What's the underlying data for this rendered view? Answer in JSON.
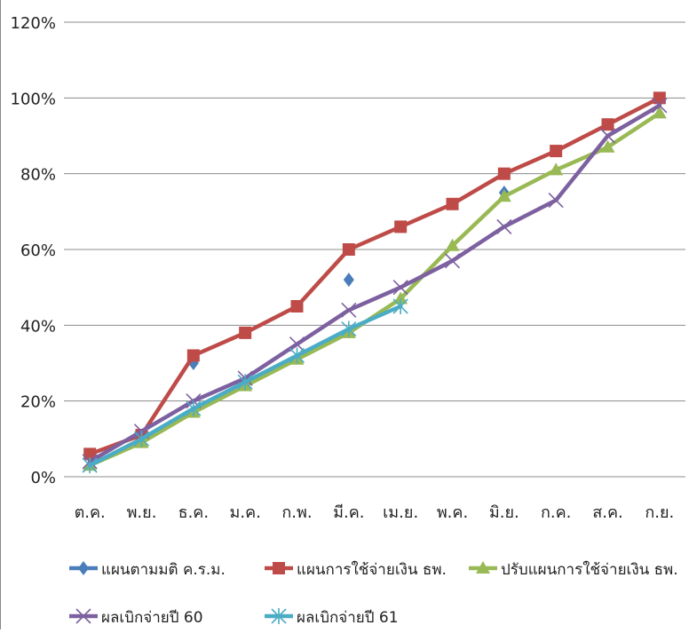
{
  "chart_data": {
    "type": "line",
    "categories": [
      "ต.ค.",
      "พ.ย.",
      "ธ.ค.",
      "ม.ค.",
      "ก.พ.",
      "มี.ค.",
      "เม.ย.",
      "พ.ค.",
      "มิ.ย.",
      "ก.ค.",
      "ส.ค.",
      "ก.ย."
    ],
    "y_ticks": [
      "0%",
      "20%",
      "40%",
      "60%",
      "80%",
      "100%",
      "120%"
    ],
    "ylim": [
      0,
      120
    ],
    "grid": "horizontal",
    "legend_position": "bottom",
    "series": [
      {
        "name": "แผนตามมติ ค.ร.ม.",
        "color": "#4a7ebb",
        "marker": "diamond",
        "line": false,
        "values": [
          null,
          null,
          30,
          null,
          null,
          52,
          null,
          null,
          75,
          null,
          null,
          null
        ]
      },
      {
        "name": "แผนการใช้จ่ายเงิน ธพ.",
        "color": "#be4b48",
        "marker": "square",
        "line": true,
        "values": [
          6,
          11,
          32,
          38,
          45,
          60,
          66,
          72,
          80,
          86,
          93,
          100
        ]
      },
      {
        "name": "ปรับแผนการใช้จ่ายเงิน ธพ.",
        "color": "#98b954",
        "marker": "triangle",
        "line": true,
        "values": [
          3,
          9,
          17,
          24,
          31,
          38,
          47,
          61,
          74,
          81,
          87,
          96
        ]
      },
      {
        "name": "ผลเบิกจ่ายปี 60",
        "color": "#7d60a0",
        "marker": "x",
        "line": true,
        "values": [
          4,
          12,
          20,
          26,
          35,
          44,
          50,
          57,
          66,
          73,
          90,
          98
        ]
      },
      {
        "name": "ผลเบิกจ่ายปี 61",
        "color": "#4bacc6",
        "marker": "star",
        "line": true,
        "values": [
          3,
          10,
          18,
          25,
          32,
          39,
          45,
          null,
          null,
          null,
          null,
          null
        ]
      }
    ]
  }
}
